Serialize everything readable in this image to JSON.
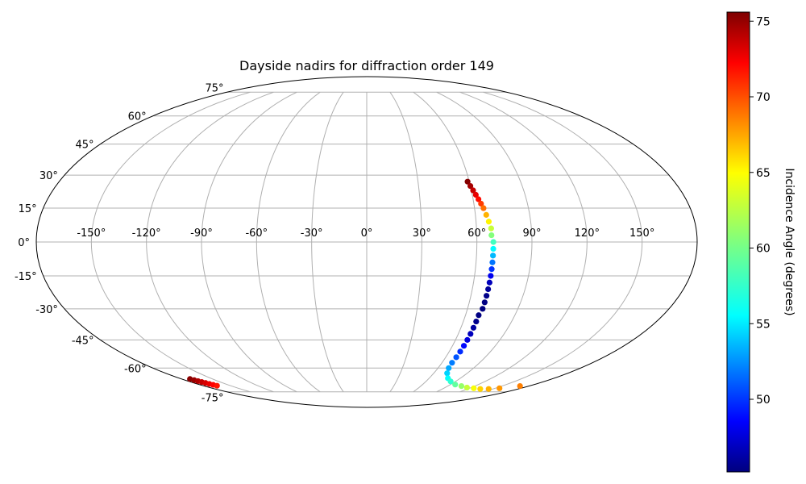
{
  "chart_data": {
    "type": "scatter",
    "projection": "mollweide",
    "title": "Dayside nadirs for diffraction order 149",
    "grid": true,
    "x_tick_labels": [
      "-150°",
      "-120°",
      "-90°",
      "-60°",
      "-30°",
      "0°",
      "30°",
      "60°",
      "90°",
      "120°",
      "150°"
    ],
    "x_ticks": [
      -150,
      -120,
      -90,
      -60,
      -30,
      0,
      30,
      60,
      90,
      120,
      150
    ],
    "y_tick_labels": [
      "-75°",
      "-60°",
      "-45°",
      "-30°",
      "-15°",
      "0°",
      "15°",
      "30°",
      "45°",
      "60°",
      "75°"
    ],
    "y_ticks": [
      -75,
      -60,
      -45,
      -30,
      -15,
      0,
      15,
      30,
      45,
      60,
      75
    ],
    "xlim": [
      -180,
      180
    ],
    "ylim": [
      -90,
      90
    ],
    "colormap": "jet",
    "colorbar": {
      "label": "Incidence Angle (degrees)",
      "range": [
        45.2,
        75.6
      ],
      "tick_labels": [
        "50",
        "55",
        "60",
        "65",
        "70",
        "75"
      ],
      "ticks": [
        50,
        55,
        60,
        65,
        70,
        75
      ]
    },
    "series": [
      {
        "points": [
          {
            "lon": 59,
            "lat": 27,
            "c": 75.5
          },
          {
            "lon": 60,
            "lat": 25,
            "c": 74.5
          },
          {
            "lon": 61,
            "lat": 23,
            "c": 73.5
          },
          {
            "lon": 62,
            "lat": 21,
            "c": 72.5
          },
          {
            "lon": 63,
            "lat": 19,
            "c": 71.5
          },
          {
            "lon": 64,
            "lat": 17,
            "c": 70
          },
          {
            "lon": 65,
            "lat": 15,
            "c": 68.5
          },
          {
            "lon": 66,
            "lat": 12,
            "c": 66.5
          },
          {
            "lon": 67,
            "lat": 9,
            "c": 64.5
          },
          {
            "lon": 68,
            "lat": 6,
            "c": 62.5
          },
          {
            "lon": 68,
            "lat": 3,
            "c": 60.5
          },
          {
            "lon": 69,
            "lat": 0,
            "c": 58.5
          },
          {
            "lon": 69,
            "lat": -3,
            "c": 56.5
          },
          {
            "lon": 69,
            "lat": -6,
            "c": 54.5
          },
          {
            "lon": 69,
            "lat": -9,
            "c": 52.5
          },
          {
            "lon": 69,
            "lat": -12,
            "c": 50.5
          },
          {
            "lon": 69,
            "lat": -15,
            "c": 48.5
          },
          {
            "lon": 69,
            "lat": -18,
            "c": 47
          },
          {
            "lon": 69,
            "lat": -21,
            "c": 46
          },
          {
            "lon": 69,
            "lat": -24,
            "c": 45.5
          },
          {
            "lon": 69,
            "lat": -27,
            "c": 45.3
          },
          {
            "lon": 69,
            "lat": -30,
            "c": 45.2
          },
          {
            "lon": 68,
            "lat": -33,
            "c": 45.3
          },
          {
            "lon": 68,
            "lat": -36,
            "c": 45.6
          },
          {
            "lon": 68,
            "lat": -39,
            "c": 46.2
          },
          {
            "lon": 68,
            "lat": -42,
            "c": 47
          },
          {
            "lon": 68,
            "lat": -45,
            "c": 48
          },
          {
            "lon": 68,
            "lat": -48,
            "c": 49.2
          },
          {
            "lon": 68,
            "lat": -51,
            "c": 50.3
          },
          {
            "lon": 68,
            "lat": -54,
            "c": 51.5
          },
          {
            "lon": 68,
            "lat": -57,
            "c": 52.7
          },
          {
            "lon": 69,
            "lat": -60,
            "c": 54
          },
          {
            "lon": 72,
            "lat": -63,
            "c": 55.3
          },
          {
            "lon": 78,
            "lat": -66,
            "c": 56.7
          },
          {
            "lon": 85,
            "lat": -68,
            "c": 58
          },
          {
            "lon": 95,
            "lat": -70,
            "c": 59.5
          },
          {
            "lon": 105,
            "lat": -71,
            "c": 61
          },
          {
            "lon": 115,
            "lat": -72,
            "c": 62.5
          },
          {
            "lon": 125,
            "lat": -72.5,
            "c": 64
          },
          {
            "lon": 135,
            "lat": -73,
            "c": 65.5
          },
          {
            "lon": 145,
            "lat": -73,
            "c": 66.5
          },
          {
            "lon": 155,
            "lat": -72.5,
            "c": 67.3
          },
          {
            "lon": 170,
            "lat": -71,
            "c": 68
          },
          {
            "lon": -172,
            "lat": -66.5,
            "c": 75.3
          },
          {
            "lon": -171,
            "lat": -67.2,
            "c": 74.8
          },
          {
            "lon": -170,
            "lat": -67.8,
            "c": 74.2
          },
          {
            "lon": -169,
            "lat": -68.4,
            "c": 73.6
          },
          {
            "lon": -168,
            "lat": -69,
            "c": 73
          },
          {
            "lon": -167,
            "lat": -69.6,
            "c": 72.4
          },
          {
            "lon": -166,
            "lat": -70.2,
            "c": 71.8
          },
          {
            "lon": -165,
            "lat": -70.8,
            "c": 71.2
          }
        ]
      }
    ]
  }
}
